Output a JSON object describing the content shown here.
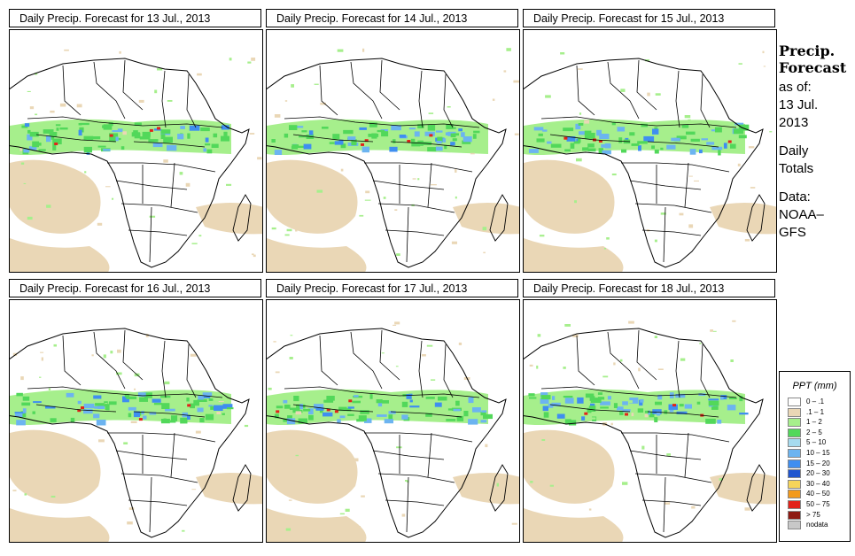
{
  "panels": [
    {
      "title": "Daily Precip. Forecast for  13 Jul., 2013"
    },
    {
      "title": "Daily Precip. Forecast for  14 Jul., 2013"
    },
    {
      "title": "Daily Precip. Forecast for  15 Jul., 2013"
    },
    {
      "title": "Daily Precip. Forecast for  16 Jul., 2013"
    },
    {
      "title": "Daily Precip. Forecast for  17 Jul., 2013"
    },
    {
      "title": "Daily Precip. Forecast for  18 Jul., 2013"
    }
  ],
  "side": {
    "title_line1": "Precip.",
    "title_line2": "Forecast",
    "asof_line1": "as of:",
    "asof_line2": "13 Jul.",
    "asof_line3": "2013",
    "totals_line1": "Daily",
    "totals_line2": "Totals",
    "data_line1": "Data:",
    "data_line2": "NOAA–",
    "data_line3": "GFS"
  },
  "legend": {
    "title": "PPT (mm)",
    "items": [
      {
        "label": "0 – .1",
        "color": "#ffffff"
      },
      {
        "label": ".1 – 1",
        "color": "#ead7b6"
      },
      {
        "label": "1 – 2",
        "color": "#a6ef8c"
      },
      {
        "label": "2 – 5",
        "color": "#52d85a"
      },
      {
        "label": "5 – 10",
        "color": "#a6dbef"
      },
      {
        "label": "10 – 15",
        "color": "#6cb4f0"
      },
      {
        "label": "15 – 20",
        "color": "#3f8ef0"
      },
      {
        "label": "20 – 30",
        "color": "#1f55cf"
      },
      {
        "label": "30 – 40",
        "color": "#f6d45a"
      },
      {
        "label": "40 – 50",
        "color": "#f39a1c"
      },
      {
        "label": "50 – 75",
        "color": "#e2231a"
      },
      {
        "label": "> 75",
        "color": "#8e1a12"
      },
      {
        "label": "nodata",
        "color": "#c8c8c8"
      }
    ]
  },
  "colors": {
    "dry": "#ead7b6",
    "light": "#a6ef8c",
    "moderate": "#52d85a",
    "heavy": "#6cb4f0",
    "very_heavy": "#3f8ef0",
    "extreme": "#e2231a"
  }
}
